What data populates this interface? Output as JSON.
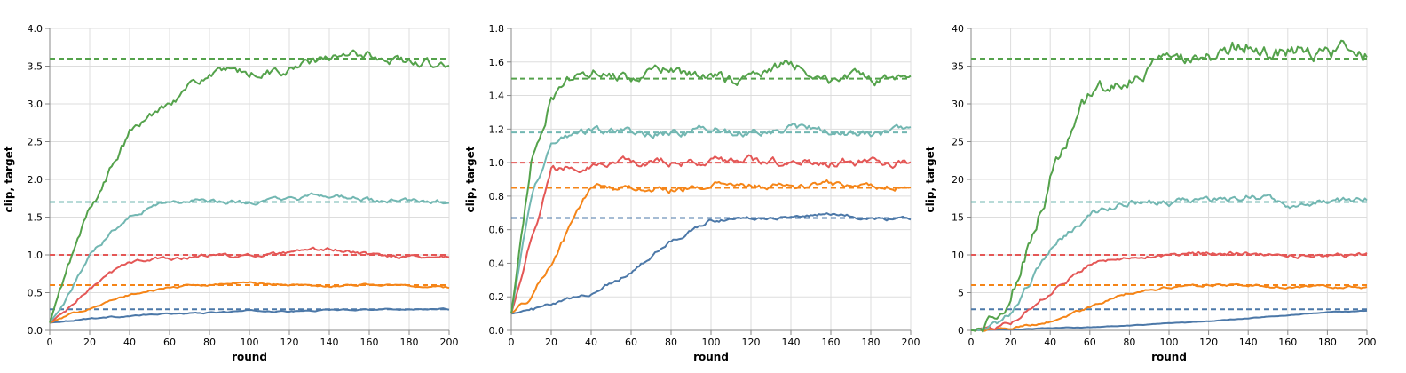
{
  "colors": {
    "blue": "#4c78a8",
    "orange": "#f58518",
    "red": "#e45756",
    "teal": "#72b7b2",
    "green": "#54a24b",
    "grid": "#dddddd",
    "axis": "#888888"
  },
  "chart_data": [
    {
      "type": "line",
      "xlabel": "round",
      "ylabel": "clip, target",
      "xlim": [
        0,
        200
      ],
      "ylim": [
        0,
        4.0
      ],
      "xticks": [
        "0",
        "20",
        "40",
        "60",
        "80",
        "100",
        "120",
        "140",
        "160",
        "180",
        "200"
      ],
      "yticks": [
        "0.0",
        "0.5",
        "1.0",
        "1.5",
        "2.0",
        "2.5",
        "3.0",
        "3.5",
        "4.0"
      ],
      "grid": true,
      "series": [
        {
          "color": "blue",
          "target": 0.28,
          "start": 0.1,
          "end": 0.28,
          "k": 0.018,
          "p": 1,
          "noise": 0.006,
          "x": [
            0,
            10,
            20,
            40,
            60,
            80,
            100,
            120,
            140,
            160,
            180,
            200
          ],
          "y": [
            0.1,
            0.13,
            0.16,
            0.19,
            0.22,
            0.23,
            0.26,
            0.25,
            0.27,
            0.28,
            0.28,
            0.28
          ]
        },
        {
          "color": "orange",
          "target": 0.6,
          "start": 0.1,
          "end": 0.58,
          "k": 0.035,
          "p": 1.1,
          "noise": 0.01,
          "x": [
            0,
            10,
            20,
            40,
            60,
            80,
            100,
            120,
            140,
            160,
            180,
            200
          ],
          "y": [
            0.1,
            0.2,
            0.3,
            0.47,
            0.57,
            0.61,
            0.63,
            0.6,
            0.59,
            0.61,
            0.59,
            0.57
          ]
        },
        {
          "color": "red",
          "target": 1.0,
          "start": 0.1,
          "end": 0.98,
          "k": 0.045,
          "p": 1.2,
          "noise": 0.018,
          "x": [
            0,
            10,
            20,
            40,
            60,
            80,
            100,
            120,
            140,
            160,
            180,
            200
          ],
          "y": [
            0.1,
            0.3,
            0.55,
            0.92,
            0.95,
            1.0,
            0.98,
            1.01,
            1.08,
            1.0,
            0.98,
            0.98
          ]
        },
        {
          "color": "teal",
          "target": 1.7,
          "start": 0.1,
          "end": 1.7,
          "k": 0.06,
          "p": 1.3,
          "noise": 0.025,
          "x": [
            0,
            10,
            20,
            40,
            60,
            80,
            100,
            120,
            140,
            160,
            180,
            200
          ],
          "y": [
            0.1,
            0.5,
            1.0,
            1.55,
            1.72,
            1.7,
            1.69,
            1.72,
            1.8,
            1.72,
            1.7,
            1.7
          ]
        },
        {
          "color": "green",
          "target": 3.6,
          "start": 0.1,
          "end": 3.5,
          "k": 0.045,
          "p": 1.5,
          "noise": 0.045,
          "x": [
            0,
            10,
            20,
            40,
            60,
            80,
            100,
            120,
            140,
            160,
            180,
            200
          ],
          "y": [
            0.1,
            0.9,
            1.6,
            2.6,
            3.05,
            3.4,
            3.4,
            3.45,
            3.6,
            3.65,
            3.55,
            3.5
          ]
        }
      ]
    },
    {
      "type": "line",
      "xlabel": "round",
      "ylabel": "clip, target",
      "xlim": [
        0,
        200
      ],
      "ylim": [
        0,
        1.8
      ],
      "xticks": [
        "0",
        "20",
        "40",
        "60",
        "80",
        "100",
        "120",
        "140",
        "160",
        "180",
        "200"
      ],
      "yticks": [
        "0.0",
        "0.2",
        "0.4",
        "0.6",
        "0.8",
        "1.0",
        "1.2",
        "1.4",
        "1.6",
        "1.8"
      ],
      "grid": true,
      "series": [
        {
          "color": "blue",
          "target": 0.67,
          "start": 0.1,
          "end": 0.66,
          "k": 0.012,
          "p": 1.6,
          "noise": 0.008,
          "x": [
            0,
            10,
            20,
            40,
            60,
            80,
            100,
            120,
            140,
            160,
            180,
            200
          ],
          "y": [
            0.1,
            0.12,
            0.15,
            0.22,
            0.35,
            0.53,
            0.66,
            0.67,
            0.68,
            0.69,
            0.67,
            0.66
          ]
        },
        {
          "color": "orange",
          "target": 0.85,
          "start": 0.1,
          "end": 0.86,
          "k": 0.04,
          "p": 1.9,
          "noise": 0.015,
          "x": [
            0,
            10,
            20,
            40,
            60,
            80,
            100,
            120,
            140,
            160,
            180,
            200
          ],
          "y": [
            0.1,
            0.2,
            0.4,
            0.86,
            0.85,
            0.84,
            0.87,
            0.86,
            0.85,
            0.87,
            0.86,
            0.86
          ]
        },
        {
          "color": "red",
          "target": 1.0,
          "start": 0.1,
          "end": 1.0,
          "k": 0.085,
          "p": 1.8,
          "noise": 0.018,
          "x": [
            0,
            10,
            20,
            40,
            60,
            80,
            100,
            120,
            140,
            160,
            180,
            200
          ],
          "y": [
            0.1,
            0.55,
            0.95,
            1.0,
            1.0,
            1.0,
            1.0,
            1.02,
            1.0,
            1.0,
            1.0,
            1.0
          ]
        },
        {
          "color": "teal",
          "target": 1.18,
          "start": 0.1,
          "end": 1.18,
          "k": 0.11,
          "p": 1.8,
          "noise": 0.018,
          "x": [
            0,
            10,
            20,
            40,
            60,
            80,
            100,
            120,
            140,
            160,
            180,
            200
          ],
          "y": [
            0.1,
            0.8,
            1.1,
            1.2,
            1.18,
            1.18,
            1.2,
            1.18,
            1.2,
            1.19,
            1.18,
            1.18
          ]
        },
        {
          "color": "green",
          "target": 1.5,
          "start": 0.1,
          "end": 1.46,
          "k": 0.13,
          "p": 1.8,
          "noise": 0.025,
          "x": [
            0,
            10,
            20,
            40,
            60,
            80,
            100,
            120,
            140,
            160,
            180,
            200
          ],
          "y": [
            0.1,
            1.0,
            1.4,
            1.55,
            1.5,
            1.55,
            1.5,
            1.5,
            1.6,
            1.5,
            1.5,
            1.46
          ]
        }
      ]
    },
    {
      "type": "line",
      "xlabel": "round",
      "ylabel": "clip, target",
      "xlim": [
        0,
        200
      ],
      "ylim": [
        0,
        40
      ],
      "xticks": [
        "0",
        "20",
        "40",
        "60",
        "80",
        "100",
        "120",
        "140",
        "160",
        "180",
        "200"
      ],
      "yticks": [
        "0",
        "5",
        "10",
        "15",
        "20",
        "25",
        "30",
        "35",
        "40"
      ],
      "grid": true,
      "series": [
        {
          "color": "blue",
          "target": 2.8,
          "start": 0.0,
          "end": 2.6,
          "k": 0.006,
          "p": 2.5,
          "noise": 0.03,
          "x": [
            0,
            10,
            20,
            40,
            60,
            80,
            100,
            120,
            140,
            160,
            180,
            200
          ],
          "y": [
            0.0,
            0.05,
            0.1,
            0.3,
            0.4,
            0.6,
            0.9,
            1.2,
            1.6,
            2.0,
            2.4,
            2.6
          ]
        },
        {
          "color": "orange",
          "target": 6.0,
          "start": 0.0,
          "end": 5.7,
          "k": 0.03,
          "p": 3.0,
          "noise": 0.12,
          "x": [
            0,
            10,
            20,
            40,
            60,
            80,
            100,
            120,
            140,
            160,
            180,
            200
          ],
          "y": [
            0.0,
            0.1,
            0.3,
            1.2,
            3.0,
            5.0,
            5.7,
            6.0,
            6.0,
            5.7,
            5.8,
            5.7
          ]
        },
        {
          "color": "red",
          "target": 10.0,
          "start": 0.0,
          "end": 10.0,
          "k": 0.036,
          "p": 3.2,
          "noise": 0.2,
          "x": [
            0,
            10,
            20,
            40,
            60,
            80,
            100,
            120,
            140,
            160,
            180,
            200
          ],
          "y": [
            0.0,
            0.2,
            1.0,
            5.0,
            8.8,
            10.0,
            9.8,
            10.1,
            10.3,
            10.0,
            10.0,
            10.0
          ]
        },
        {
          "color": "teal",
          "target": 17.0,
          "start": 0.0,
          "end": 17.5,
          "k": 0.035,
          "p": 2.6,
          "noise": 0.35,
          "x": [
            0,
            10,
            20,
            40,
            60,
            80,
            100,
            120,
            140,
            160,
            180,
            200
          ],
          "y": [
            0.0,
            0.5,
            2.0,
            11.0,
            15.5,
            17.0,
            17.0,
            17.0,
            18.0,
            16.5,
            17.0,
            17.5
          ]
        },
        {
          "color": "green",
          "target": 36.0,
          "start": 0.0,
          "end": 36.5,
          "k": 0.028,
          "p": 2.8,
          "noise": 0.8,
          "x": [
            0,
            10,
            20,
            40,
            60,
            80,
            100,
            120,
            140,
            160,
            180,
            200
          ],
          "y": [
            0.0,
            1.0,
            4.5,
            20.0,
            31.0,
            33.0,
            35.5,
            36.5,
            38.0,
            37.0,
            37.5,
            36.5
          ]
        }
      ]
    }
  ]
}
